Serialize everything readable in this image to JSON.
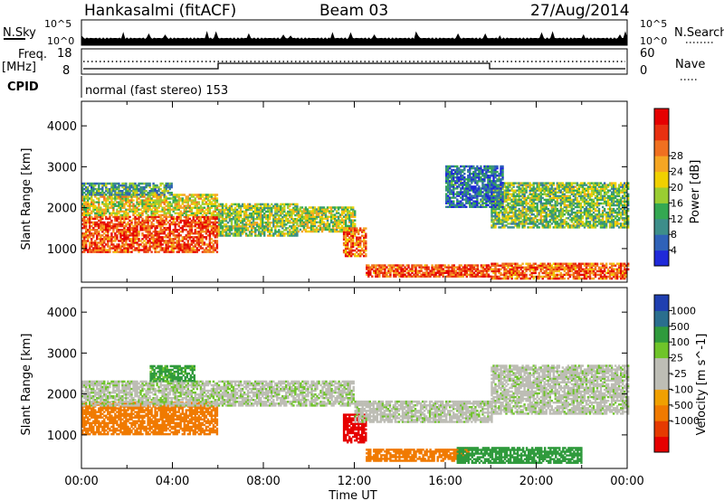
{
  "header": {
    "station": "Hankasalmi (fitACF)",
    "beam": "Beam 03",
    "date": "27/Aug/2014"
  },
  "strips": {
    "nsky_label": "N.Sky",
    "nsky_ticks": [
      "10^5",
      "10^0"
    ],
    "nsearch_label": "N.Search",
    "nsearch_ticks": [
      "10^5",
      "10^0"
    ],
    "freq_label": "Freq.",
    "freq_unit": "[MHz]",
    "freq_ticks": [
      "18",
      "8"
    ],
    "nave_label": "Nave",
    "nave_ticks": [
      "60",
      "0"
    ],
    "cpid_label": "CPID",
    "cpid_text": "normal (fast stereo) 153"
  },
  "colors": {
    "frame": "#000000",
    "scatter_gray": "#bdbdb5",
    "power_scale": [
      "#1f29d9",
      "#2f62b8",
      "#3d8e8a",
      "#34a852",
      "#9acd32",
      "#f0d000",
      "#f5a623",
      "#f07020",
      "#e83010",
      "#e60000"
    ],
    "velocity_scale": [
      "#1f3fb0",
      "#2a6e8e",
      "#2f9a3c",
      "#6fc42a",
      "#bdbdb5",
      "#bdbdb5",
      "#f0a000",
      "#f07a00",
      "#e63a00",
      "#e60000"
    ]
  },
  "chart_data": [
    {
      "type": "heatmap",
      "name": "power",
      "xlabel": "Time UT",
      "ylabel": "Slant Range [km]",
      "x_ticks": [
        "00:00",
        "04:00",
        "08:00",
        "12:00",
        "16:00",
        "20:00",
        "00:00"
      ],
      "x_range_hours": [
        0,
        24
      ],
      "ylim": [
        180,
        4600
      ],
      "y_ticks": [
        1000,
        2000,
        3000,
        4000
      ],
      "colorbar_label": "Power [dB]",
      "colorbar_ticks": [
        4,
        8,
        12,
        16,
        20,
        24,
        28
      ],
      "colorbar_range": [
        0,
        32
      ],
      "regions": [
        {
          "t": [
            0.0,
            6.0
          ],
          "r": [
            900,
            1800
          ],
          "value": 26
        },
        {
          "t": [
            0.0,
            6.0
          ],
          "r": [
            1800,
            2300
          ],
          "value": 17
        },
        {
          "t": [
            0.0,
            4.0
          ],
          "r": [
            2300,
            2600
          ],
          "value": 10
        },
        {
          "t": [
            6.0,
            9.5
          ],
          "r": [
            1300,
            2100
          ],
          "value": 14
        },
        {
          "t": [
            9.5,
            12.0
          ],
          "r": [
            1400,
            2000
          ],
          "value": 15
        },
        {
          "t": [
            11.5,
            12.5
          ],
          "r": [
            800,
            1500
          ],
          "value": 24
        },
        {
          "t": [
            12.5,
            18.0
          ],
          "r": [
            300,
            600
          ],
          "value": 26
        },
        {
          "t": [
            18.0,
            24.0
          ],
          "r": [
            250,
            650
          ],
          "value": 25
        },
        {
          "t": [
            18.0,
            24.0
          ],
          "r": [
            1500,
            2600
          ],
          "value": 13
        },
        {
          "t": [
            16.0,
            18.5
          ],
          "r": [
            2000,
            3000
          ],
          "value": 6
        }
      ]
    },
    {
      "type": "heatmap",
      "name": "velocity",
      "xlabel": "Time UT",
      "ylabel": "Slant Range [km]",
      "x_ticks": [
        "00:00",
        "04:00",
        "08:00",
        "12:00",
        "16:00",
        "20:00",
        "00:00"
      ],
      "x_range_hours": [
        0,
        24
      ],
      "ylim": [
        180,
        4600
      ],
      "y_ticks": [
        1000,
        2000,
        3000,
        4000
      ],
      "colorbar_label": "Velocity [m s^-1]",
      "colorbar_ticks": [
        "1000",
        "500",
        "100",
        "25",
        "-25",
        "-100",
        "-500",
        "-1000"
      ],
      "regions": [
        {
          "t": [
            0.0,
            6.0
          ],
          "r": [
            1000,
            1800
          ],
          "value": -200
        },
        {
          "t": [
            0.0,
            12.0
          ],
          "r": [
            1700,
            2300
          ],
          "value": 10
        },
        {
          "t": [
            3.0,
            5.0
          ],
          "r": [
            2300,
            2700
          ],
          "value": 80
        },
        {
          "t": [
            11.5,
            12.5
          ],
          "r": [
            800,
            1500
          ],
          "value": -800
        },
        {
          "t": [
            12.5,
            17.0
          ],
          "r": [
            350,
            650
          ],
          "value": -200
        },
        {
          "t": [
            16.5,
            22.0
          ],
          "r": [
            300,
            700
          ],
          "value": 120
        },
        {
          "t": [
            18.0,
            24.0
          ],
          "r": [
            1500,
            2700
          ],
          "value": 5
        },
        {
          "t": [
            12.0,
            18.0
          ],
          "r": [
            1300,
            1800
          ],
          "value": 5
        }
      ]
    }
  ]
}
